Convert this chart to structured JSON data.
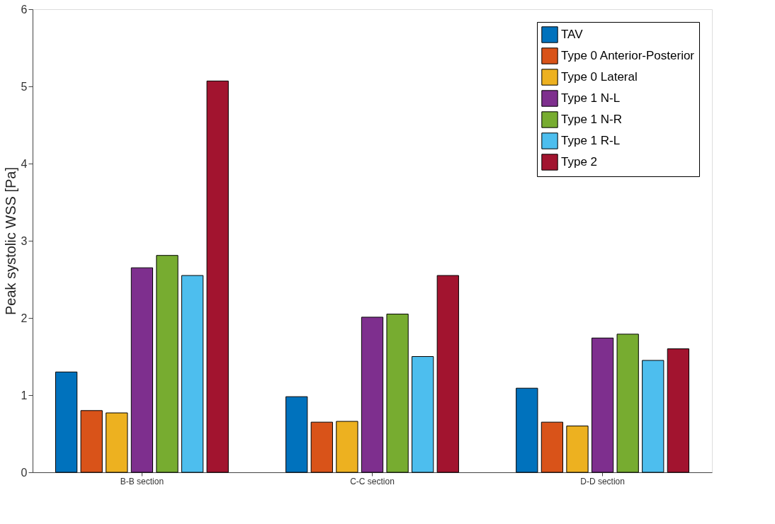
{
  "chart_data": {
    "type": "bar",
    "ylabel": "Peak systolic WSS [Pa]",
    "categories": [
      "B-B section",
      "C-C section",
      "D-D section"
    ],
    "series": [
      {
        "name": "TAV",
        "color": "#0072bd",
        "values": [
          1.3,
          0.98,
          1.09
        ]
      },
      {
        "name": "Type 0 Anterior-Posterior",
        "color": "#d95319",
        "values": [
          0.8,
          0.65,
          0.65
        ]
      },
      {
        "name": "Type 0 Lateral",
        "color": "#edb120",
        "values": [
          0.77,
          0.66,
          0.6
        ]
      },
      {
        "name": "Type 1 N-L",
        "color": "#7e2f8e",
        "values": [
          2.65,
          2.01,
          1.74
        ]
      },
      {
        "name": "Type 1 N-R",
        "color": "#77ac30",
        "values": [
          2.81,
          2.05,
          1.79
        ]
      },
      {
        "name": "Type 1 R-L",
        "color": "#4dbeee",
        "values": [
          2.55,
          1.5,
          1.45
        ]
      },
      {
        "name": "Type 2",
        "color": "#a2142f",
        "values": [
          5.07,
          2.55,
          1.6
        ]
      }
    ],
    "ylim": [
      0,
      6
    ],
    "yticks": [
      0,
      1,
      2,
      3,
      4,
      5,
      6
    ],
    "grid": false,
    "legend": "top right"
  }
}
